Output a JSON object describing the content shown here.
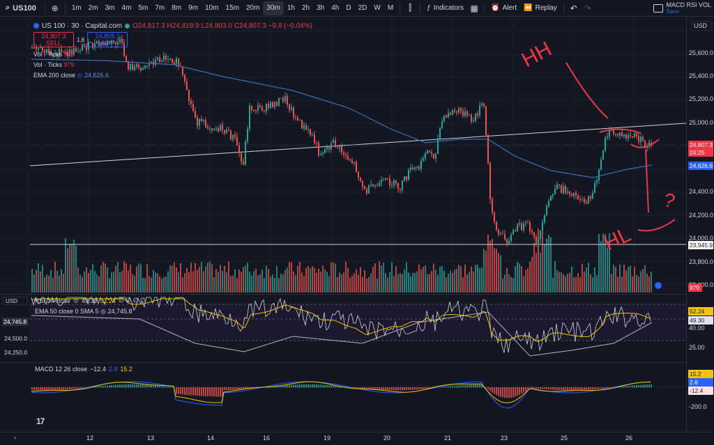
{
  "toolbar": {
    "symbol": "US100",
    "timeframes": [
      "1m",
      "2m",
      "3m",
      "4m",
      "5m",
      "7m",
      "8m",
      "9m",
      "10m",
      "15m",
      "20m",
      "30m",
      "1h",
      "2h",
      "3h",
      "4h",
      "D",
      "2D",
      "W",
      "M"
    ],
    "active_timeframe": "30m",
    "indicators_label": "Indicators",
    "alert_label": "Alert",
    "replay_label": "Replay",
    "layout_name": "MACD RSI VOL",
    "layout_save": "Save"
  },
  "legend": {
    "title": "US 100 · 30 · Capital.com",
    "ohlc": "O24,817.3 H24,819.9 L24,803.0 C24,807.3 −9.8 (−0.04%)",
    "sell_price": "24,807.3",
    "sell_label": "SELL",
    "spread": "1.8",
    "buy_price": "24,809.1",
    "buy_label": "BUY",
    "vol1_label": "Vol · Ticks",
    "vol1_value": "979",
    "vol2_label": "Vol · Ticks",
    "vol2_value": "979",
    "ema_label": "EMA 200 close",
    "ema_value": "24,626.6"
  },
  "rsi_legend": {
    "label": "RSI 14 close",
    "rsi_value": "49.30",
    "rsi_ma_value": "52.24",
    "extra": "∅ ∅ ∅ ∅",
    "sma_label": "EMA 50 close 0 SMA 5",
    "sma_value": "24,745.8"
  },
  "macd_legend": {
    "label": "MACD 12 26 close",
    "hist": "−12.4",
    "macd": "2.8",
    "signal": "15.2"
  },
  "price_axis": {
    "currency": "USD",
    "labels": [
      "25,600.0",
      "25,400.0",
      "25,200.0",
      "25,000.0",
      "24,400.0",
      "24,200.0",
      "24,000.0",
      "23,800.0",
      "23,600.0"
    ],
    "last_price_tag": "24,807.3",
    "countdown_tag": "24:25",
    "ema_tag": "24,626.6",
    "hline_tag": "23,945.9",
    "volume_tag": "979"
  },
  "rsi_axis": {
    "labels": [
      "40.00",
      "25.00"
    ],
    "rsi_ma_tag": "52.24",
    "rsi_tag": "49.30"
  },
  "rsi_left_axis": {
    "currency": "USD",
    "tag": "24,745.8",
    "labels": [
      "24,500.0",
      "24,250.0"
    ]
  },
  "macd_axis": {
    "labels": [
      "-200.0"
    ],
    "signal_tag": "15.2",
    "macd_tag": "2.8",
    "hist_tag": "-12.4"
  },
  "time_axis": {
    "labels": [
      "12",
      "13",
      "14",
      "16",
      "19",
      "20",
      "21",
      "23",
      "25",
      "26"
    ]
  },
  "annotations": {
    "hh": "HH",
    "hl": "HL",
    "question": "?"
  },
  "colors": {
    "bg": "#131722",
    "up": "#26a69a",
    "down": "#ef5350",
    "ema": "#3d6fb8",
    "annotation": "#f23645"
  }
}
